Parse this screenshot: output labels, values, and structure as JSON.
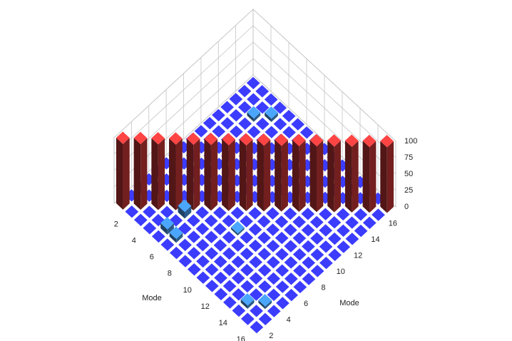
{
  "chart_data": {
    "type": "bar3d",
    "x_label": "Mode",
    "y_label": "Mode",
    "x_categories": [
      null,
      2,
      null,
      4,
      null,
      6,
      null,
      8,
      null,
      10,
      null,
      12,
      null,
      14,
      null,
      16
    ],
    "y_categories": [
      null,
      2,
      null,
      4,
      null,
      6,
      null,
      8,
      null,
      10,
      null,
      12,
      null,
      14,
      null,
      16
    ],
    "z": [
      [
        100,
        0,
        0,
        0,
        0,
        0,
        0,
        0,
        0,
        0,
        0,
        0,
        0,
        0,
        0,
        0
      ],
      [
        0,
        100,
        0,
        0,
        0,
        0,
        0,
        0,
        0,
        0,
        0,
        0,
        0,
        0,
        0,
        0
      ],
      [
        0,
        0,
        100,
        0,
        0,
        0,
        0,
        0,
        0,
        0,
        0,
        0,
        0,
        5,
        0,
        0
      ],
      [
        0,
        0,
        0,
        100,
        0,
        0,
        0,
        0,
        0,
        0,
        0,
        0,
        0,
        0,
        5,
        0
      ],
      [
        0,
        8,
        0,
        10,
        100,
        0,
        0,
        0,
        0,
        0,
        0,
        0,
        0,
        0,
        0,
        0
      ],
      [
        0,
        6,
        0,
        0,
        0,
        100,
        0,
        0,
        0,
        0,
        0,
        0,
        0,
        0,
        0,
        0
      ],
      [
        0,
        0,
        0,
        0,
        0,
        0,
        100,
        0,
        0,
        0,
        0,
        0,
        0,
        0,
        0,
        0
      ],
      [
        0,
        0,
        0,
        0,
        0,
        0,
        0,
        100,
        0,
        0,
        0,
        0,
        0,
        0,
        0,
        0
      ],
      [
        0,
        0,
        0,
        0,
        0,
        3,
        0,
        0,
        100,
        0,
        0,
        0,
        0,
        0,
        0,
        0
      ],
      [
        0,
        0,
        0,
        0,
        0,
        0,
        0,
        0,
        0,
        100,
        0,
        0,
        0,
        0,
        0,
        0
      ],
      [
        0,
        0,
        0,
        0,
        0,
        0,
        0,
        0,
        0,
        0,
        100,
        0,
        0,
        0,
        0,
        0
      ],
      [
        0,
        0,
        0,
        0,
        0,
        0,
        0,
        0,
        0,
        0,
        0,
        100,
        0,
        0,
        0,
        0
      ],
      [
        0,
        0,
        0,
        0,
        0,
        0,
        0,
        0,
        0,
        0,
        0,
        0,
        100,
        0,
        0,
        0
      ],
      [
        0,
        5,
        0,
        0,
        0,
        0,
        0,
        0,
        0,
        0,
        0,
        0,
        0,
        100,
        0,
        0
      ],
      [
        0,
        0,
        4,
        0,
        0,
        0,
        0,
        0,
        0,
        0,
        0,
        0,
        0,
        0,
        100,
        0
      ],
      [
        0,
        0,
        0,
        0,
        0,
        0,
        0,
        0,
        0,
        0,
        0,
        0,
        0,
        0,
        0,
        100
      ]
    ],
    "zlim": [
      0,
      100
    ],
    "zticks": [
      0,
      25,
      50,
      75,
      100
    ],
    "low_color": "#3c3cff",
    "mid_color": "#4aa6ff",
    "high_color": "#ff4444"
  }
}
